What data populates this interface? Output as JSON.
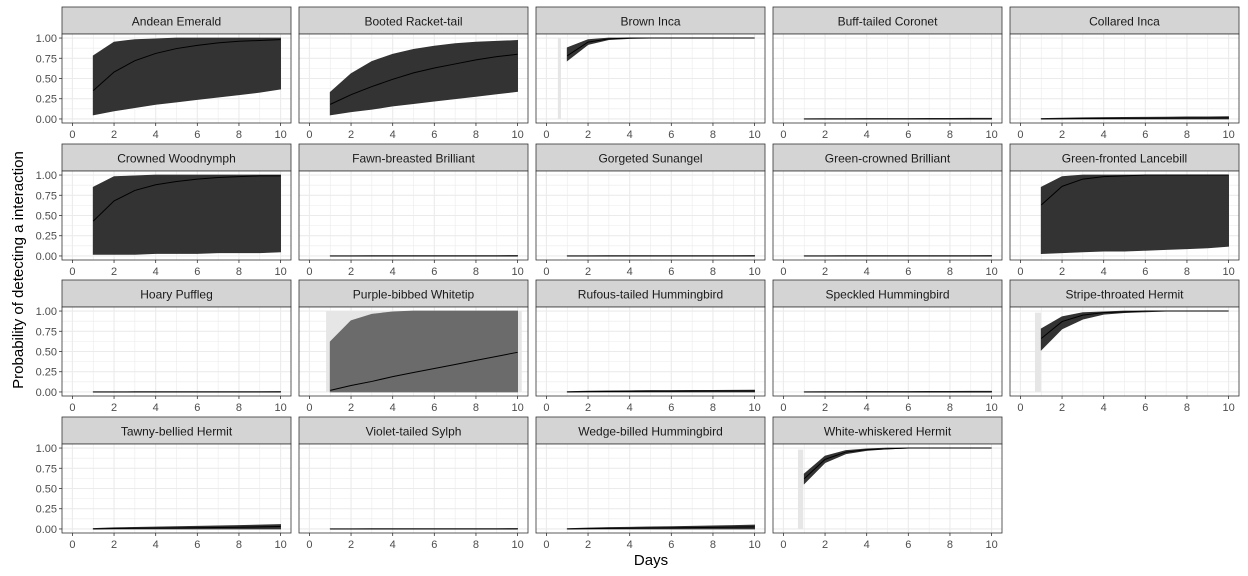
{
  "chart_data": {
    "type": "area",
    "facet_layout": "wrap",
    "ncol": 5,
    "xlabel": "Days",
    "ylabel": "Probability of detecting a interaction",
    "xlim": [
      0,
      10
    ],
    "ylim": [
      0,
      1
    ],
    "x_ticks": [
      "0",
      "2",
      "4",
      "6",
      "8",
      "10"
    ],
    "y_ticks": [
      "0.00",
      "0.25",
      "0.50",
      "0.75",
      "1.00"
    ],
    "grid": true,
    "legend": "none",
    "colors": {
      "ribbon": "#333333",
      "ribbon_light": "#6b6b6b",
      "highlight": "#e6e6e6",
      "line": "#000000",
      "strip": "#d4d4d4",
      "grid": "#ebebeb",
      "border": "#333333"
    },
    "x": [
      1,
      2,
      3,
      4,
      5,
      6,
      7,
      8,
      9,
      10
    ],
    "panels": [
      {
        "title": "Andean Emerald",
        "mean": [
          0.35,
          0.58,
          0.72,
          0.81,
          0.87,
          0.91,
          0.94,
          0.96,
          0.97,
          0.98
        ],
        "lower": [
          0.05,
          0.1,
          0.14,
          0.18,
          0.21,
          0.24,
          0.27,
          0.3,
          0.33,
          0.37
        ],
        "upper": [
          0.78,
          0.95,
          0.98,
          0.99,
          1.0,
          1.0,
          1.0,
          1.0,
          1.0,
          1.0
        ]
      },
      {
        "title": "Booted Racket-tail",
        "mean": [
          0.18,
          0.3,
          0.4,
          0.49,
          0.57,
          0.63,
          0.68,
          0.73,
          0.77,
          0.8
        ],
        "lower": [
          0.05,
          0.09,
          0.12,
          0.16,
          0.19,
          0.22,
          0.25,
          0.28,
          0.31,
          0.34
        ],
        "upper": [
          0.33,
          0.56,
          0.71,
          0.8,
          0.86,
          0.9,
          0.93,
          0.95,
          0.96,
          0.97
        ]
      },
      {
        "title": "Brown Inca",
        "mean": [
          0.78,
          0.95,
          0.99,
          1.0,
          1.0,
          1.0,
          1.0,
          1.0,
          1.0,
          1.0
        ],
        "lower": [
          0.72,
          0.92,
          0.98,
          0.995,
          1.0,
          1.0,
          1.0,
          1.0,
          1.0,
          1.0
        ],
        "upper": [
          0.88,
          0.98,
          1.0,
          1.0,
          1.0,
          1.0,
          1.0,
          1.0,
          1.0,
          1.0
        ],
        "highlight": [
          0.55,
          0.7,
          0.0,
          1.0
        ]
      },
      {
        "title": "Buff-tailed Coronet",
        "mean": [
          0,
          0,
          0,
          0,
          0,
          0,
          0,
          0,
          0,
          0
        ],
        "lower": [
          0,
          0,
          0,
          0,
          0,
          0,
          0,
          0,
          0,
          0
        ],
        "upper": [
          0.002,
          0.003,
          0.004,
          0.005,
          0.006,
          0.006,
          0.007,
          0.007,
          0.008,
          0.008
        ]
      },
      {
        "title": "Collared Inca",
        "mean": [
          0,
          0.003,
          0.005,
          0.006,
          0.008,
          0.009,
          0.01,
          0.011,
          0.012,
          0.013
        ],
        "lower": [
          0,
          0,
          0,
          0,
          0,
          0,
          0,
          0,
          0,
          0
        ],
        "upper": [
          0.005,
          0.01,
          0.014,
          0.017,
          0.019,
          0.021,
          0.023,
          0.025,
          0.026,
          0.028
        ]
      },
      {
        "title": "Crowned Woodnymph",
        "mean": [
          0.43,
          0.68,
          0.81,
          0.88,
          0.92,
          0.95,
          0.97,
          0.98,
          0.99,
          0.99
        ],
        "lower": [
          0.02,
          0.02,
          0.02,
          0.03,
          0.03,
          0.03,
          0.04,
          0.04,
          0.04,
          0.05
        ],
        "upper": [
          0.85,
          0.98,
          0.99,
          1.0,
          1.0,
          1.0,
          1.0,
          1.0,
          1.0,
          1.0
        ]
      },
      {
        "title": "Fawn-breasted Brilliant",
        "mean": [
          0,
          0,
          0,
          0,
          0,
          0,
          0,
          0,
          0,
          0
        ],
        "lower": [
          0,
          0,
          0,
          0,
          0,
          0,
          0,
          0,
          0,
          0
        ],
        "upper": [
          0.002,
          0.002,
          0.003,
          0.003,
          0.003,
          0.004,
          0.004,
          0.004,
          0.004,
          0.005
        ]
      },
      {
        "title": "Gorgeted Sunangel",
        "mean": [
          0,
          0,
          0,
          0,
          0,
          0,
          0,
          0,
          0,
          0
        ],
        "lower": [
          0,
          0,
          0,
          0,
          0,
          0,
          0,
          0,
          0,
          0
        ],
        "upper": [
          0.002,
          0.002,
          0.003,
          0.003,
          0.003,
          0.004,
          0.004,
          0.004,
          0.004,
          0.005
        ]
      },
      {
        "title": "Green-crowned Brilliant",
        "mean": [
          0,
          0,
          0,
          0,
          0,
          0,
          0,
          0,
          0,
          0
        ],
        "lower": [
          0,
          0,
          0,
          0,
          0,
          0,
          0,
          0,
          0,
          0
        ],
        "upper": [
          0.002,
          0.002,
          0.003,
          0.003,
          0.003,
          0.004,
          0.004,
          0.004,
          0.004,
          0.005
        ]
      },
      {
        "title": "Green-fronted Lancebill",
        "mean": [
          0.63,
          0.86,
          0.95,
          0.98,
          0.99,
          1.0,
          1.0,
          1.0,
          1.0,
          1.0
        ],
        "lower": [
          0.03,
          0.04,
          0.05,
          0.06,
          0.06,
          0.07,
          0.08,
          0.09,
          0.1,
          0.12
        ],
        "upper": [
          0.85,
          0.98,
          1.0,
          1.0,
          1.0,
          1.0,
          1.0,
          1.0,
          1.0,
          1.0
        ]
      },
      {
        "title": "Hoary Puffleg",
        "mean": [
          0,
          0,
          0,
          0,
          0,
          0,
          0,
          0,
          0,
          0
        ],
        "lower": [
          0,
          0,
          0,
          0,
          0,
          0,
          0,
          0,
          0,
          0
        ],
        "upper": [
          0.002,
          0.002,
          0.003,
          0.003,
          0.003,
          0.004,
          0.004,
          0.004,
          0.004,
          0.005
        ]
      },
      {
        "title": "Purple-bibbed Whitetip",
        "ribbon_tone": "light",
        "mean": [
          0.02,
          0.08,
          0.13,
          0.19,
          0.24,
          0.29,
          0.34,
          0.39,
          0.44,
          0.49
        ],
        "lower": [
          0,
          0,
          0,
          0,
          0,
          0,
          0,
          0,
          0,
          0
        ],
        "upper": [
          0.62,
          0.88,
          0.96,
          0.99,
          1.0,
          1.0,
          1.0,
          1.0,
          1.0,
          1.0
        ],
        "highlight": [
          0.8,
          10.2,
          0.0,
          1.0
        ]
      },
      {
        "title": "Rufous-tailed Hummingbird",
        "mean": [
          0,
          0.004,
          0.006,
          0.007,
          0.008,
          0.009,
          0.01,
          0.011,
          0.012,
          0.012
        ],
        "lower": [
          0,
          0,
          0,
          0,
          0,
          0,
          0,
          0,
          0,
          0
        ],
        "upper": [
          0.004,
          0.01,
          0.013,
          0.015,
          0.017,
          0.018,
          0.019,
          0.02,
          0.021,
          0.022
        ]
      },
      {
        "title": "Speckled Hummingbird",
        "mean": [
          0,
          0,
          0,
          0,
          0,
          0,
          0,
          0,
          0,
          0
        ],
        "lower": [
          0,
          0,
          0,
          0,
          0,
          0,
          0,
          0,
          0,
          0
        ],
        "upper": [
          0.002,
          0.003,
          0.004,
          0.005,
          0.006,
          0.006,
          0.007,
          0.007,
          0.008,
          0.008
        ]
      },
      {
        "title": "Stripe-throated Hermit",
        "mean": [
          0.66,
          0.87,
          0.95,
          0.98,
          0.99,
          1.0,
          1.0,
          1.0,
          1.0,
          1.0
        ],
        "lower": [
          0.52,
          0.78,
          0.9,
          0.96,
          0.98,
          0.99,
          1.0,
          1.0,
          1.0,
          1.0
        ],
        "upper": [
          0.78,
          0.93,
          0.98,
          0.99,
          1.0,
          1.0,
          1.0,
          1.0,
          1.0,
          1.0
        ],
        "highlight": [
          0.7,
          1.0,
          0.0,
          0.98
        ]
      },
      {
        "title": "Tawny-bellied Hermit",
        "mean": [
          0,
          0.005,
          0.008,
          0.01,
          0.012,
          0.015,
          0.018,
          0.021,
          0.025,
          0.03
        ],
        "lower": [
          0,
          0,
          0,
          0,
          0,
          0,
          0,
          0,
          0,
          0
        ],
        "upper": [
          0.005,
          0.015,
          0.02,
          0.024,
          0.028,
          0.033,
          0.038,
          0.043,
          0.048,
          0.055
        ]
      },
      {
        "title": "Violet-tailed Sylph",
        "mean": [
          0,
          0,
          0,
          0,
          0,
          0,
          0,
          0,
          0,
          0
        ],
        "lower": [
          0,
          0,
          0,
          0,
          0,
          0,
          0,
          0,
          0,
          0
        ],
        "upper": [
          0.002,
          0.002,
          0.003,
          0.003,
          0.003,
          0.004,
          0.004,
          0.004,
          0.004,
          0.005
        ]
      },
      {
        "title": "Wedge-billed Hummingbird",
        "mean": [
          0,
          0.004,
          0.007,
          0.009,
          0.011,
          0.014,
          0.017,
          0.02,
          0.023,
          0.026
        ],
        "lower": [
          0,
          0,
          0,
          0,
          0,
          0,
          0,
          0,
          0,
          0
        ],
        "upper": [
          0.004,
          0.012,
          0.017,
          0.021,
          0.025,
          0.029,
          0.033,
          0.038,
          0.043,
          0.048
        ]
      },
      {
        "title": "White-whiskered Hermit",
        "mean": [
          0.62,
          0.86,
          0.95,
          0.98,
          0.99,
          1.0,
          1.0,
          1.0,
          1.0,
          1.0
        ],
        "lower": [
          0.56,
          0.82,
          0.93,
          0.97,
          0.99,
          1.0,
          1.0,
          1.0,
          1.0,
          1.0
        ],
        "upper": [
          0.68,
          0.9,
          0.97,
          0.99,
          1.0,
          1.0,
          1.0,
          1.0,
          1.0,
          1.0
        ],
        "highlight": [
          0.7,
          0.95,
          0.0,
          0.98
        ]
      }
    ]
  }
}
